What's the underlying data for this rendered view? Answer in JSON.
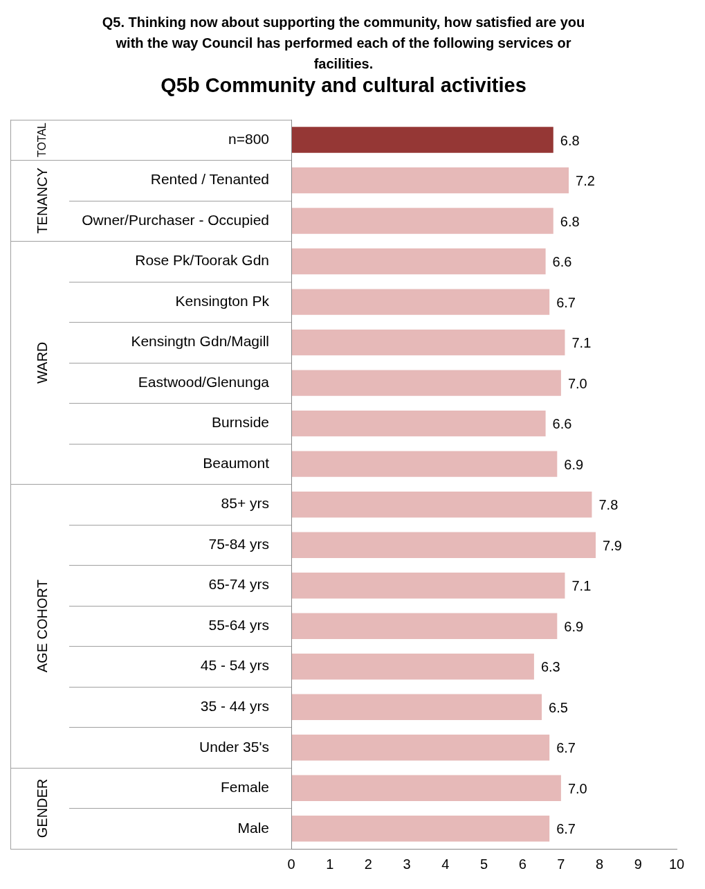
{
  "chart_data": {
    "type": "bar",
    "orientation": "horizontal",
    "title": "Q5. Thinking now about supporting the community, how satisfied are you with the way Council has performed each of the following services or facilities.",
    "subtitle": "Q5b Community and cultural activities",
    "categories": [
      "n=800",
      "Rented / Tenanted",
      "Owner/Purchaser - Occupied",
      "Rose Pk/Toorak Gdn",
      "Kensington Pk",
      "Kensingtn Gdn/Magill",
      "Eastwood/Glenunga",
      "Burnside",
      "Beaumont",
      "85+ yrs",
      "75-84 yrs",
      "65-74 yrs",
      "55-64 yrs",
      "45 - 54 yrs",
      "35 - 44 yrs",
      "Under 35's",
      "Female",
      "Male"
    ],
    "values": [
      6.8,
      7.2,
      6.8,
      6.6,
      6.7,
      7.1,
      7.0,
      6.6,
      6.9,
      7.8,
      7.9,
      7.1,
      6.9,
      6.3,
      6.5,
      6.7,
      7.0,
      6.7
    ],
    "value_labels": [
      "6.8",
      "7.2",
      "6.8",
      "6.6",
      "6.7",
      "7.1",
      "7.0",
      "6.6",
      "6.9",
      "7.8",
      "7.9",
      "7.1",
      "6.9",
      "6.3",
      "6.5",
      "6.7",
      "7.0",
      "6.7"
    ],
    "colors": [
      "#953735",
      "#e6b9b8",
      "#e6b9b8",
      "#e6b9b8",
      "#e6b9b8",
      "#e6b9b8",
      "#e6b9b8",
      "#e6b9b8",
      "#e6b9b8",
      "#e6b9b8",
      "#e6b9b8",
      "#e6b9b8",
      "#e6b9b8",
      "#e6b9b8",
      "#e6b9b8",
      "#e6b9b8",
      "#e6b9b8",
      "#e6b9b8"
    ],
    "annotations": [
      "TOTAL",
      "TENANCY",
      "WARD",
      "AGE COHORT",
      "GENDER"
    ],
    "xlim": [
      0,
      10
    ],
    "xticks": [
      0,
      1,
      2,
      3,
      4,
      5,
      6,
      7,
      8,
      9,
      10
    ],
    "grid": false,
    "legend": false
  }
}
